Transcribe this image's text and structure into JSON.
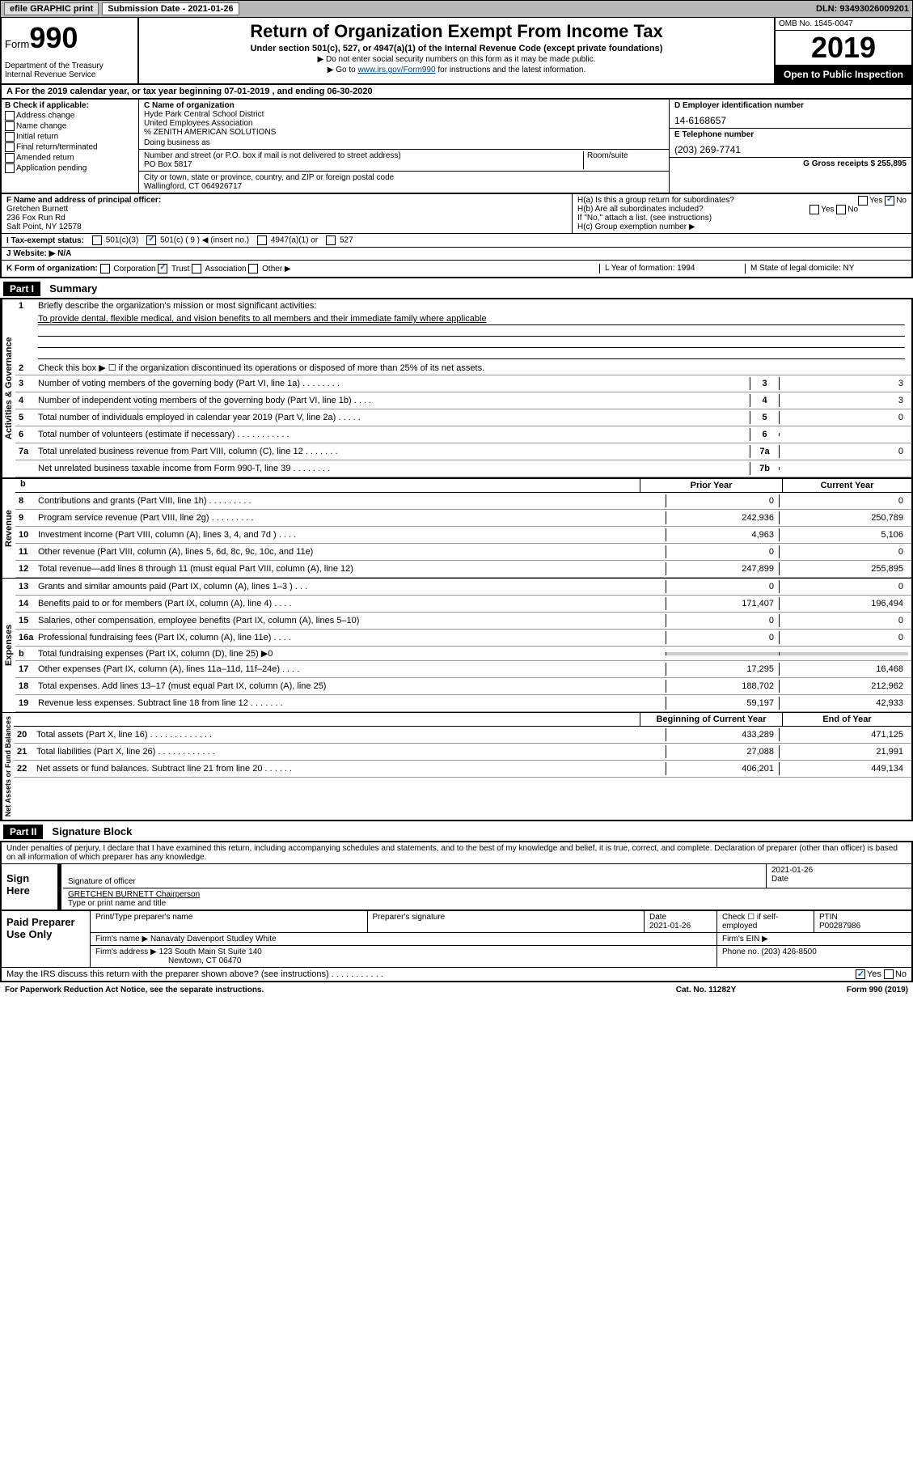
{
  "topbar": {
    "btn1": "efile GRAPHIC print",
    "sub_label": "Submission Date - 2021-01-26",
    "dln": "DLN: 93493026009201"
  },
  "header": {
    "form_word": "Form",
    "form_no": "990",
    "dept": "Department of the Treasury\nInternal Revenue Service",
    "title": "Return of Organization Exempt From Income Tax",
    "sub": "Under section 501(c), 527, or 4947(a)(1) of the Internal Revenue Code (except private foundations)",
    "note1": "▶ Do not enter social security numbers on this form as it may be made public.",
    "note2_pre": "▶ Go to ",
    "note2_link": "www.irs.gov/Form990",
    "note2_post": " for instructions and the latest information.",
    "omb": "OMB No. 1545-0047",
    "year": "2019",
    "inspect": "Open to Public Inspection"
  },
  "line_a": "A For the 2019 calendar year, or tax year beginning 07-01-2019  , and ending 06-30-2020",
  "section_b": {
    "label": "B Check if applicable:",
    "checks": [
      "Address change",
      "Name change",
      "Initial return",
      "Final return/terminated",
      "Amended return",
      "Application pending"
    ],
    "c_label": "C Name of organization",
    "org1": "Hyde Park Central School District",
    "org2": "United Employees Association",
    "org3": "% ZENITH AMERICAN SOLUTIONS",
    "dba_label": "Doing business as",
    "addr_label": "Number and street (or P.O. box if mail is not delivered to street address)",
    "room_label": "Room/suite",
    "addr": "PO Box 5817",
    "city_label": "City or town, state or province, country, and ZIP or foreign postal code",
    "city": "Wallingford, CT  064926717",
    "d_label": "D Employer identification number",
    "ein": "14-6168657",
    "e_label": "E Telephone number",
    "phone": "(203) 269-7741",
    "g_label": "G Gross receipts $ 255,895"
  },
  "row_f": {
    "label": "F  Name and address of principal officer:",
    "name": "Gretchen Burnett",
    "addr": "236 Fox Run Rd",
    "city": "Salt Point, NY  12578"
  },
  "row_h": {
    "ha": "H(a)  Is this a group return for subordinates?",
    "hb": "H(b)  Are all subordinates included?",
    "hb_note": "If \"No,\" attach a list. (see instructions)",
    "hc": "H(c)  Group exemption number ▶",
    "yes": "Yes",
    "no": "No"
  },
  "row_i": {
    "label": "I  Tax-exempt status:",
    "o1": "501(c)(3)",
    "o2": "501(c) ( 9 ) ◀ (insert no.)",
    "o3": "4947(a)(1) or",
    "o4": "527"
  },
  "row_j": {
    "label": "J  Website: ▶",
    "val": "N/A"
  },
  "row_k": {
    "label": "K Form of organization:",
    "corp": "Corporation",
    "trust": "Trust",
    "assoc": "Association",
    "other": "Other ▶",
    "l_label": "L Year of formation:",
    "l_val": "1994",
    "m_label": "M State of legal domicile:",
    "m_val": "NY"
  },
  "part1": {
    "hdr": "Part I",
    "title": "Summary"
  },
  "summary": {
    "q1": "Briefly describe the organization's mission or most significant activities:",
    "mission": "To provide dental, flexible medical, and vision benefits to all members and their immediate family where applicable",
    "q2": "Check this box ▶ ☐ if the organization discontinued its operations or disposed of more than 25% of its net assets.",
    "lines_gov": [
      {
        "n": "3",
        "t": "Number of voting members of the governing body (Part VI, line 1a)  .  .  .  .  .  .  .  .",
        "c": "3",
        "v": "3"
      },
      {
        "n": "4",
        "t": "Number of independent voting members of the governing body (Part VI, line 1b)  .  .  .  .",
        "c": "4",
        "v": "3"
      },
      {
        "n": "5",
        "t": "Total number of individuals employed in calendar year 2019 (Part V, line 2a)  .  .  .  .  .",
        "c": "5",
        "v": "0"
      },
      {
        "n": "6",
        "t": "Total number of volunteers (estimate if necessary)  .  .  .  .  .  .  .  .  .  .  .",
        "c": "6",
        "v": ""
      },
      {
        "n": "7a",
        "t": "Total unrelated business revenue from Part VIII, column (C), line 12  .  .  .  .  .  .  .",
        "c": "7a",
        "v": "0"
      },
      {
        "n": "",
        "t": "Net unrelated business taxable income from Form 990-T, line 39  .  .  .  .  .  .  .  .",
        "c": "7b",
        "v": ""
      }
    ],
    "colhdr_b": "b",
    "colhdr1": "Prior Year",
    "colhdr2": "Current Year",
    "rev": [
      {
        "n": "8",
        "t": "Contributions and grants (Part VIII, line 1h)  .  .  .  .  .  .  .  .  .",
        "p": "0",
        "c": "0"
      },
      {
        "n": "9",
        "t": "Program service revenue (Part VIII, line 2g)  .  .  .  .  .  .  .  .  .",
        "p": "242,936",
        "c": "250,789"
      },
      {
        "n": "10",
        "t": "Investment income (Part VIII, column (A), lines 3, 4, and 7d )  .  .  .  .",
        "p": "4,963",
        "c": "5,106"
      },
      {
        "n": "11",
        "t": "Other revenue (Part VIII, column (A), lines 5, 6d, 8c, 9c, 10c, and 11e)",
        "p": "0",
        "c": "0"
      },
      {
        "n": "12",
        "t": "Total revenue—add lines 8 through 11 (must equal Part VIII, column (A), line 12)",
        "p": "247,899",
        "c": "255,895"
      }
    ],
    "exp": [
      {
        "n": "13",
        "t": "Grants and similar amounts paid (Part IX, column (A), lines 1–3 )  .  .  .",
        "p": "0",
        "c": "0"
      },
      {
        "n": "14",
        "t": "Benefits paid to or for members (Part IX, column (A), line 4)  .  .  .  .",
        "p": "171,407",
        "c": "196,494"
      },
      {
        "n": "15",
        "t": "Salaries, other compensation, employee benefits (Part IX, column (A), lines 5–10)",
        "p": "0",
        "c": "0"
      },
      {
        "n": "16a",
        "t": "Professional fundraising fees (Part IX, column (A), line 11e)  .  .  .  .",
        "p": "0",
        "c": "0"
      },
      {
        "n": "b",
        "t": "Total fundraising expenses (Part IX, column (D), line 25) ▶0",
        "p": "",
        "c": ""
      },
      {
        "n": "17",
        "t": "Other expenses (Part IX, column (A), lines 11a–11d, 11f–24e)  .  .  .  .",
        "p": "17,295",
        "c": "16,468"
      },
      {
        "n": "18",
        "t": "Total expenses. Add lines 13–17 (must equal Part IX, column (A), line 25)",
        "p": "188,702",
        "c": "212,962"
      },
      {
        "n": "19",
        "t": "Revenue less expenses. Subtract line 18 from line 12  .  .   .  .  .  .  .",
        "p": "59,197",
        "c": "42,933"
      }
    ],
    "na_hdr1": "Beginning of Current Year",
    "na_hdr2": "End of Year",
    "na": [
      {
        "n": "20",
        "t": "Total assets (Part X, line 16)  .  .  .  .  .  .  .  .  .  .  .  .  .",
        "p": "433,289",
        "c": "471,125"
      },
      {
        "n": "21",
        "t": "Total liabilities (Part X, line 26)  .  .  .  .  .  .  .  .  .  .  .  .",
        "p": "27,088",
        "c": "21,991"
      },
      {
        "n": "22",
        "t": "Net assets or fund balances. Subtract line 21 from line 20  .  .  .  .  .  .",
        "p": "406,201",
        "c": "449,134"
      }
    ],
    "side_gov": "Activities & Governance",
    "side_rev": "Revenue",
    "side_exp": "Expenses",
    "side_na": "Net Assets or Fund Balances"
  },
  "part2": {
    "hdr": "Part II",
    "title": "Signature Block"
  },
  "sig": {
    "decl": "Under penalties of perjury, I declare that I have examined this return, including accompanying schedules and statements, and to the best of my knowledge and belief, it is true, correct, and complete. Declaration of preparer (other than officer) is based on all information of which preparer has any knowledge.",
    "sign_here": "Sign Here",
    "sig_officer": "Signature of officer",
    "date_label": "Date",
    "date": "2021-01-26",
    "name": "GRETCHEN BURNETT Chairperson",
    "type_label": "Type or print name and title"
  },
  "prep": {
    "label": "Paid Preparer Use Only",
    "c1": "Print/Type preparer's name",
    "c2": "Preparer's signature",
    "c3": "Date",
    "c3v": "2021-01-26",
    "c4": "Check ☐ if self-employed",
    "c5": "PTIN",
    "c5v": "P00287986",
    "firm_label": "Firm's name    ▶",
    "firm": "Nanavaty Davenport Studley White",
    "ein_label": "Firm's EIN ▶",
    "addr_label": "Firm's address ▶",
    "addr1": "123 South Main St Suite 140",
    "addr2": "Newtown, CT  06470",
    "phone_label": "Phone no.",
    "phone": "(203) 426-8500",
    "discuss": "May the IRS discuss this return with the preparer shown above? (see instructions)  .  .  .  .  .  .  .  .  .  .  .",
    "yes": "Yes",
    "no": "No"
  },
  "footer": {
    "left": "For Paperwork Reduction Act Notice, see the separate instructions.",
    "mid": "Cat. No. 11282Y",
    "right": "Form 990 (2019)"
  }
}
